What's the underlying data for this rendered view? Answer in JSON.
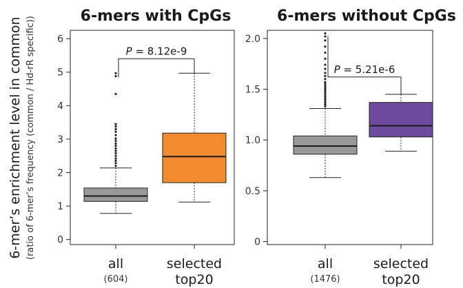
{
  "y_axis": {
    "label": "6-mer’s enrichment level in common",
    "sublabel": "(ratio of 6-mer’s frequency (common / Hd-rR specific))"
  },
  "chart_data": [
    {
      "type": "box",
      "title": "6-mers with CpGs",
      "ylim": [
        -0.15,
        6.25
      ],
      "yticks": [
        "0",
        "1",
        "2",
        "3",
        "4",
        "5",
        "6"
      ],
      "ytick_values": [
        0,
        1,
        2,
        3,
        4,
        5,
        6
      ],
      "categories": [
        {
          "label": "all",
          "sublabel": "(604)"
        },
        {
          "label": "selected",
          "sublabel": "top20"
        }
      ],
      "boxes": [
        {
          "whisker_low": 0.78,
          "q1": 1.14,
          "median": 1.3,
          "q3": 1.54,
          "whisker_high": 2.14,
          "color": "#999999",
          "outliers": [
            2.2,
            2.28,
            2.35,
            2.42,
            2.5,
            2.58,
            2.65,
            2.72,
            2.8,
            2.87,
            2.95,
            3.02,
            3.12,
            3.22,
            3.3,
            3.38,
            3.45,
            4.35,
            4.88,
            4.97
          ]
        },
        {
          "whisker_low": 1.12,
          "q1": 1.7,
          "median": 2.48,
          "q3": 3.18,
          "whisker_high": 4.97,
          "color": "#f28a30",
          "outliers": []
        }
      ],
      "pvalue": {
        "label": "P",
        "text": " = 8.12e-9",
        "y": 5.4
      }
    },
    {
      "type": "box",
      "title": "6-mers without CpGs",
      "ylim": [
        -0.03,
        2.08
      ],
      "yticks": [
        "0",
        "0.5",
        "1.0",
        "1.5",
        "2.0"
      ],
      "ytick_values": [
        0,
        0.5,
        1.0,
        1.5,
        2.0
      ],
      "categories": [
        {
          "label": "all",
          "sublabel": "(1476)"
        },
        {
          "label": "selected",
          "sublabel": "top20"
        }
      ],
      "boxes": [
        {
          "whisker_low": 0.63,
          "q1": 0.86,
          "median": 0.94,
          "q3": 1.04,
          "whisker_high": 1.31,
          "color": "#999999",
          "outliers": [
            1.33,
            1.35,
            1.37,
            1.39,
            1.41,
            1.43,
            1.45,
            1.47,
            1.49,
            1.51,
            1.53,
            1.55,
            1.57,
            1.6,
            1.63,
            1.66,
            1.7,
            1.74,
            1.8,
            1.86,
            1.92,
            1.98,
            2.02,
            2.05
          ]
        },
        {
          "whisker_low": 0.89,
          "q1": 1.03,
          "median": 1.14,
          "q3": 1.37,
          "whisker_high": 1.45,
          "color": "#6e4a9e",
          "outliers": []
        }
      ],
      "pvalue": {
        "label": "P",
        "text": " = 5.21e-6",
        "y": 1.62
      }
    }
  ]
}
